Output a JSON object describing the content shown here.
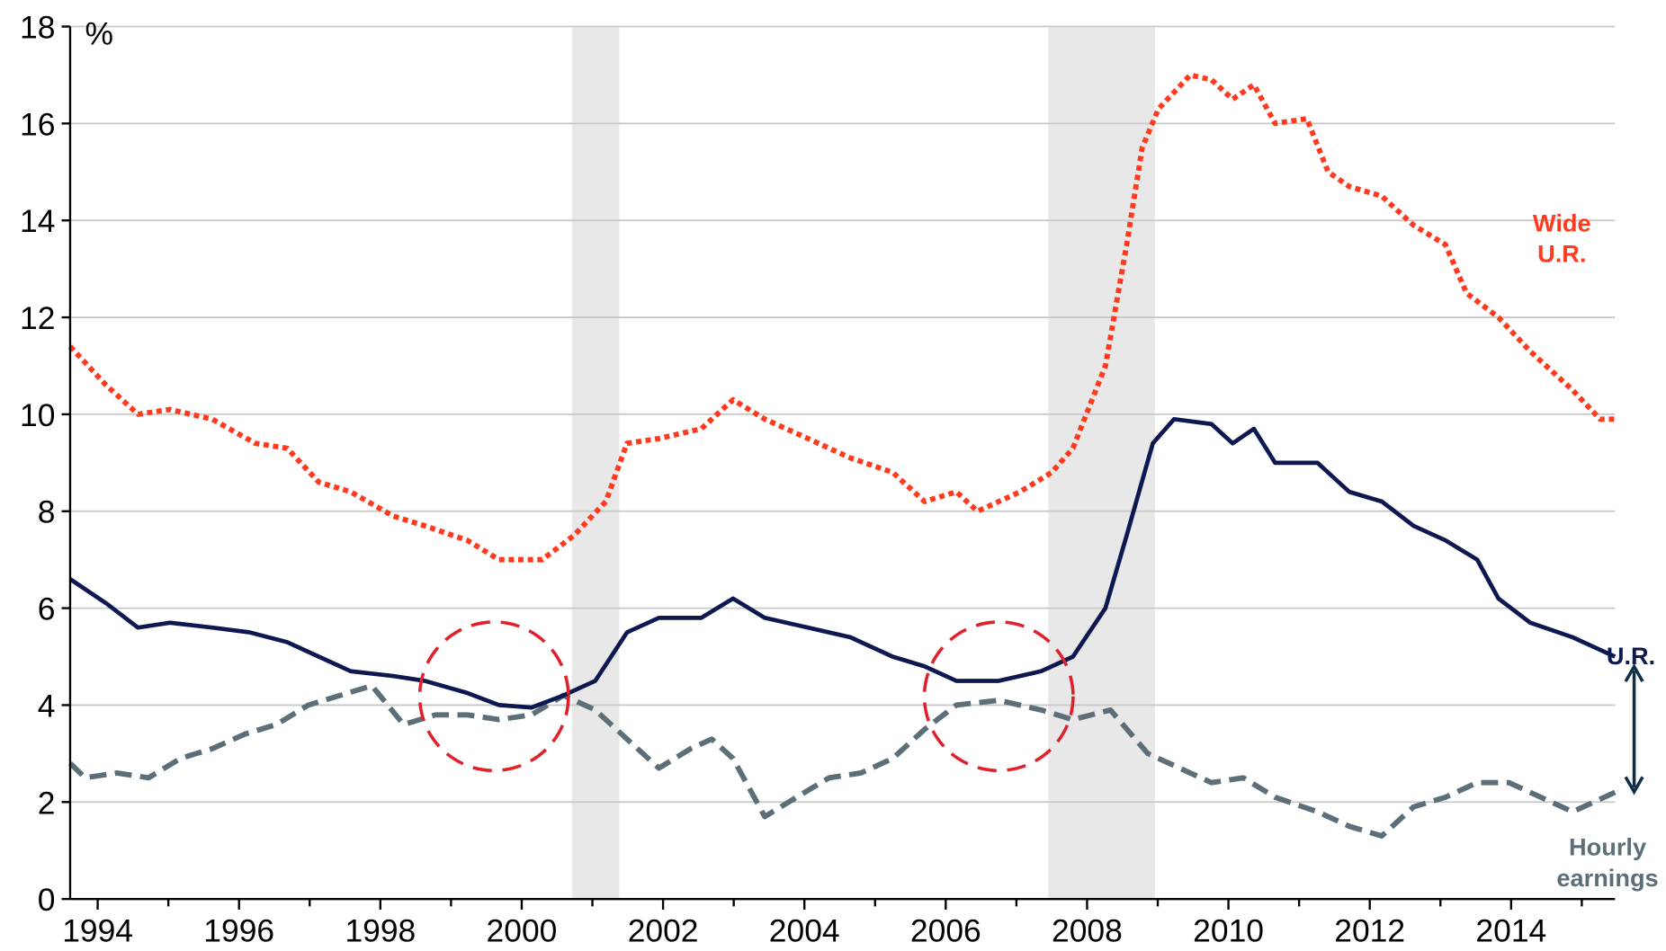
{
  "chart_data": {
    "type": "line",
    "ylabel": "%",
    "xlim": [
      1993.61,
      2015.47
    ],
    "ylim": [
      0,
      18
    ],
    "xticks": [
      1994,
      1996,
      1998,
      2000,
      2002,
      2004,
      2006,
      2008,
      2010,
      2012,
      2014
    ],
    "xminorticks": [
      1995,
      1997,
      1999,
      2001,
      2003,
      2005,
      2007,
      2009,
      2011,
      2013,
      2015
    ],
    "yticks": [
      0,
      2,
      4,
      6,
      8,
      10,
      12,
      14,
      16,
      18
    ],
    "grid": true,
    "recessions": [
      [
        2000.71,
        2001.38
      ],
      [
        2007.45,
        2008.96
      ]
    ],
    "recession_color": "#e8e8e8",
    "series": [
      {
        "name": "U.R.",
        "color": "#0d1850",
        "style": "solid",
        "x": [
          1993.61,
          1994.12,
          1994.57,
          1995.02,
          1995.62,
          1996.15,
          1996.68,
          1997.13,
          1997.58,
          1998.18,
          1998.63,
          1999.23,
          1999.68,
          2000.14,
          2000.59,
          2001.04,
          2001.49,
          2001.94,
          2002.54,
          2002.99,
          2003.44,
          2004.05,
          2004.65,
          2005.25,
          2005.7,
          2006.15,
          2006.75,
          2007.35,
          2007.8,
          2008.26,
          2008.56,
          2008.93,
          2009.23,
          2009.76,
          2010.06,
          2010.36,
          2010.66,
          2011.26,
          2011.71,
          2012.17,
          2012.62,
          2013.07,
          2013.52,
          2013.82,
          2014.27,
          2014.87,
          2015.47
        ],
        "values": [
          6.6,
          6.1,
          5.6,
          5.7,
          5.6,
          5.5,
          5.3,
          5.0,
          4.7,
          4.6,
          4.5,
          4.25,
          4.0,
          3.95,
          4.2,
          4.5,
          5.5,
          5.8,
          5.8,
          6.2,
          5.8,
          5.6,
          5.4,
          5.0,
          4.8,
          4.5,
          4.5,
          4.7,
          5.0,
          6.0,
          7.5,
          9.4,
          9.9,
          9.8,
          9.4,
          9.7,
          9.0,
          9.0,
          8.4,
          8.2,
          7.7,
          7.4,
          7.0,
          6.2,
          5.7,
          5.4,
          5.0
        ]
      },
      {
        "name": "Wide U.R.",
        "color": "#ff3b1f",
        "style": "dotted",
        "x": [
          1993.61,
          1994.12,
          1994.57,
          1995.02,
          1995.62,
          1996.23,
          1996.68,
          1997.13,
          1997.58,
          1998.18,
          1998.63,
          1999.23,
          1999.68,
          2000.29,
          2000.74,
          2001.19,
          2001.49,
          2001.94,
          2002.54,
          2002.99,
          2003.44,
          2004.05,
          2004.65,
          2005.25,
          2005.7,
          2006.15,
          2006.45,
          2007.05,
          2007.5,
          2007.8,
          2008.26,
          2008.56,
          2008.78,
          2009.01,
          2009.46,
          2009.76,
          2010.06,
          2010.36,
          2010.66,
          2011.11,
          2011.41,
          2011.71,
          2012.17,
          2012.62,
          2013.07,
          2013.37,
          2013.82,
          2014.27,
          2014.87,
          2015.26,
          2015.47
        ],
        "values": [
          11.4,
          10.6,
          10.0,
          10.1,
          9.9,
          9.4,
          9.3,
          8.6,
          8.4,
          7.9,
          7.7,
          7.4,
          7.0,
          7.0,
          7.5,
          8.2,
          9.4,
          9.5,
          9.7,
          10.3,
          9.9,
          9.5,
          9.1,
          8.8,
          8.2,
          8.4,
          8.0,
          8.4,
          8.8,
          9.3,
          11.0,
          13.5,
          15.5,
          16.3,
          17.0,
          16.9,
          16.5,
          16.8,
          16.0,
          16.1,
          15.0,
          14.7,
          14.5,
          13.9,
          13.5,
          12.5,
          12.0,
          11.3,
          10.5,
          9.9,
          9.9
        ]
      },
      {
        "name": "Hourly earnings",
        "color": "#5c6e78",
        "style": "dashed",
        "x": [
          1993.61,
          1993.82,
          1994.27,
          1994.72,
          1995.17,
          1995.62,
          1996.08,
          1996.53,
          1996.98,
          1997.43,
          1997.88,
          1998.33,
          1998.78,
          1999.23,
          1999.68,
          2000.14,
          2000.59,
          2001.04,
          2001.49,
          2001.94,
          2002.39,
          2002.69,
          2002.99,
          2003.44,
          2003.89,
          2004.35,
          2004.8,
          2005.25,
          2005.7,
          2006.15,
          2006.75,
          2007.35,
          2007.8,
          2008.33,
          2008.86,
          2009.31,
          2009.76,
          2010.21,
          2010.66,
          2011.26,
          2011.71,
          2012.17,
          2012.62,
          2013.07,
          2013.52,
          2013.97,
          2014.42,
          2014.87,
          2015.32,
          2015.47
        ],
        "values": [
          2.8,
          2.5,
          2.6,
          2.5,
          2.9,
          3.1,
          3.4,
          3.6,
          4.0,
          4.2,
          4.4,
          3.6,
          3.8,
          3.8,
          3.7,
          3.8,
          4.2,
          3.9,
          3.3,
          2.7,
          3.1,
          3.3,
          2.9,
          1.7,
          2.1,
          2.5,
          2.6,
          2.9,
          3.5,
          4.0,
          4.1,
          3.9,
          3.7,
          3.9,
          3.0,
          2.7,
          2.4,
          2.5,
          2.1,
          1.8,
          1.5,
          1.3,
          1.9,
          2.1,
          2.4,
          2.4,
          2.1,
          1.8,
          2.1,
          2.2
        ]
      }
    ]
  }
}
